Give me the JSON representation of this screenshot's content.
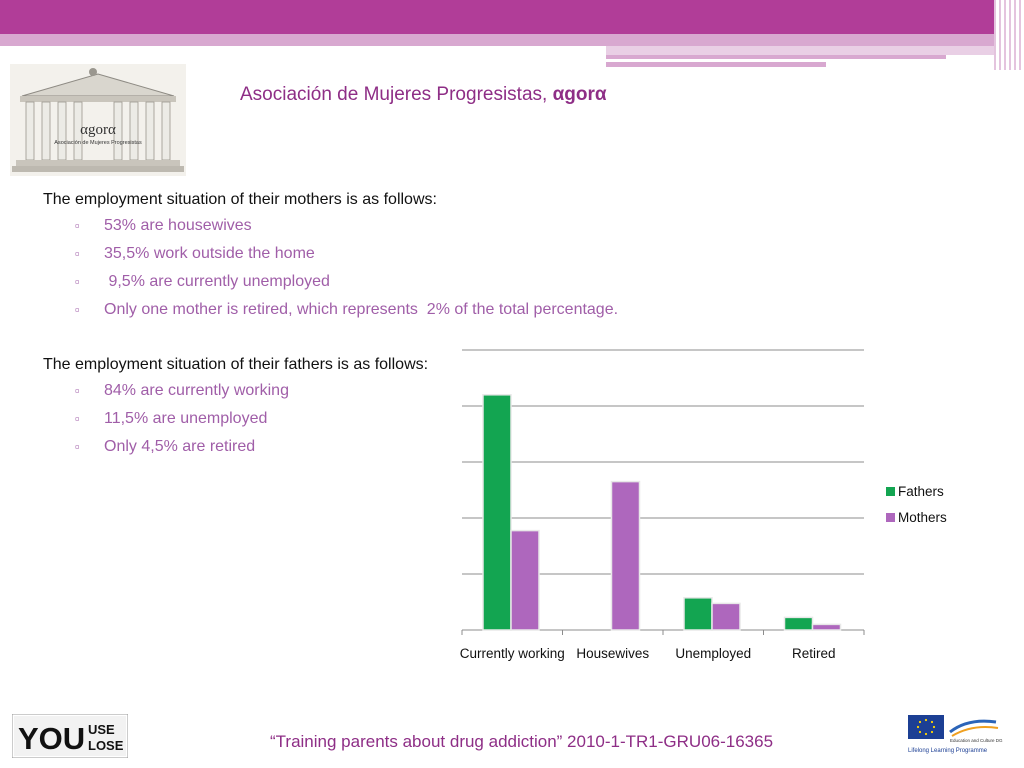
{
  "header": {
    "title_prefix": "Asociación de Mujeres Progresistas, ",
    "title_brand": "αgorα"
  },
  "logo": {
    "name": "αgorα",
    "subtitle": "Asociación de Mujeres Progresistas"
  },
  "mothers": {
    "intro": "The employment situation of their mothers is as follows:",
    "items": [
      "53% are housewives",
      "35,5% work outside the home",
      " 9,5% are currently unemployed",
      "Only one mother is retired, which represents  2% of the total percentage."
    ]
  },
  "fathers": {
    "intro": "The employment situation of their fathers is as follows:",
    "items": [
      "84% are currently working",
      "11,5% are unemployed",
      "Only 4,5% are retired"
    ]
  },
  "chart_data": {
    "type": "bar",
    "categories": [
      "Currently working",
      "Housewives",
      "Unemployed",
      "Retired"
    ],
    "series": [
      {
        "name": "Fathers",
        "values": [
          84,
          0,
          11.5,
          4.5
        ],
        "color": "#13a551"
      },
      {
        "name": "Mothers",
        "values": [
          35.5,
          53,
          9.5,
          2
        ],
        "color": "#ae67bd"
      }
    ],
    "ylim": [
      0,
      100
    ],
    "grid": true,
    "legend": "right"
  },
  "footer": {
    "text": "“Training parents about drug addiction” 2010-1-TR1-GRU06-16365"
  },
  "youlose": {
    "you": "YOU",
    "use": "USE",
    "lose": "LOSE"
  },
  "eu": {
    "dg": "Education and Culture DG",
    "programme": "Lifelong Learning Programme"
  },
  "colors": {
    "accent": "#b13d98",
    "title": "#8e2e86",
    "bullet": "#a05ea8"
  }
}
